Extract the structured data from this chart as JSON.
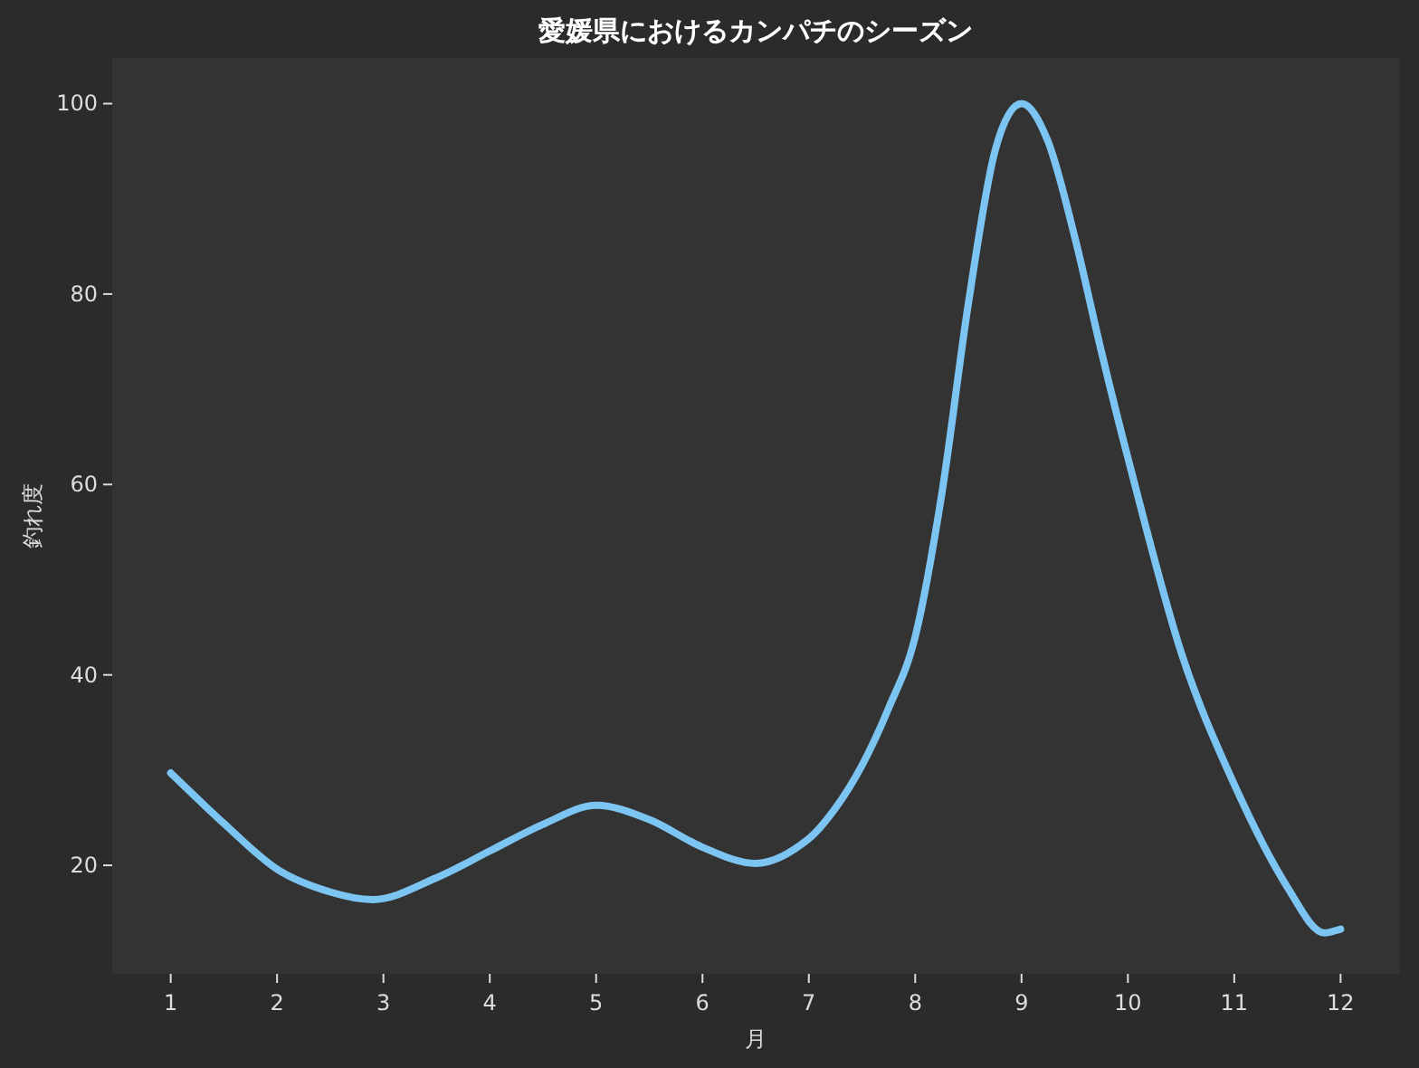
{
  "chart_data": {
    "type": "line",
    "title": "愛媛県におけるカンパチのシーズン",
    "xlabel": "月",
    "ylabel": "釣れ度",
    "xlim": [
      0.45,
      12.55
    ],
    "xticks": [
      1,
      2,
      3,
      4,
      5,
      6,
      7,
      8,
      9,
      10,
      11,
      12
    ],
    "ylim": [
      8.6,
      104.8
    ],
    "yticks": [
      20,
      40,
      60,
      80,
      100
    ],
    "grid": false,
    "marker": "none",
    "line_style": "solid",
    "series": [
      {
        "color": "#7cc4f2",
        "x": [
          1,
          1.5,
          2,
          2.5,
          2.9,
          3.5,
          4,
          4.5,
          5,
          5.5,
          6,
          6.5,
          7,
          7.25,
          7.5,
          7.75,
          8,
          8.25,
          8.5,
          8.75,
          9,
          9.25,
          9.5,
          9.75,
          10,
          10.5,
          11,
          11.5,
          11.85,
          12
        ],
        "values": [
          29.7,
          24.4,
          19.6,
          17.2,
          16.4,
          18.7,
          21.5,
          24.3,
          26.3,
          24.8,
          21.9,
          20.2,
          22.8,
          26,
          30.5,
          36.5,
          44,
          59,
          79,
          95,
          100,
          96,
          86,
          74,
          62.8,
          42.4,
          28.5,
          17.7,
          12.9,
          13.3
        ]
      }
    ]
  }
}
